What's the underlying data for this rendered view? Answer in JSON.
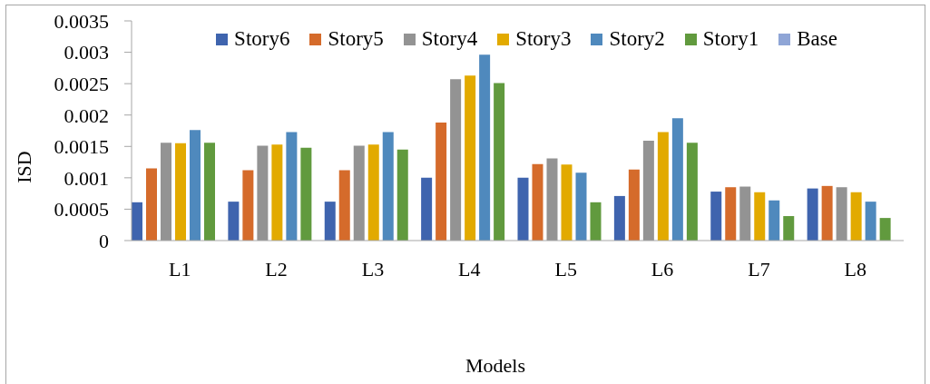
{
  "chart_data": {
    "type": "bar",
    "xlabel": "Models",
    "ylabel": "ISD",
    "legend": "top",
    "categories": [
      "L1",
      "L2",
      "L3",
      "L4",
      "L5",
      "L6",
      "L7",
      "L8"
    ],
    "series": [
      {
        "name": "Story6",
        "color": "#3f64ae",
        "values": [
          0.00061,
          0.00062,
          0.00062,
          0.001,
          0.001,
          0.00071,
          0.00078,
          0.00083
        ]
      },
      {
        "name": "Story5",
        "color": "#d56b2b",
        "values": [
          0.00115,
          0.00112,
          0.00112,
          0.00188,
          0.00122,
          0.00113,
          0.00085,
          0.00087
        ]
      },
      {
        "name": "Story4",
        "color": "#939393",
        "values": [
          0.00156,
          0.00151,
          0.00151,
          0.00257,
          0.00131,
          0.00159,
          0.00086,
          0.00085
        ]
      },
      {
        "name": "Story3",
        "color": "#e2aa00",
        "values": [
          0.00155,
          0.00153,
          0.00153,
          0.00263,
          0.00121,
          0.00173,
          0.00077,
          0.00077
        ]
      },
      {
        "name": "Story2",
        "color": "#4f89bd",
        "values": [
          0.00176,
          0.00173,
          0.00173,
          0.00296,
          0.00108,
          0.00195,
          0.00064,
          0.00062
        ]
      },
      {
        "name": "Story1",
        "color": "#619a3e",
        "values": [
          0.00156,
          0.00148,
          0.00145,
          0.00251,
          0.00061,
          0.00156,
          0.00039,
          0.00036
        ]
      },
      {
        "name": "Base",
        "color": "#8fa5d6",
        "values": [
          null,
          null,
          null,
          null,
          null,
          null,
          null,
          null
        ]
      }
    ],
    "ylim": [
      0,
      0.0035
    ],
    "yticks": [
      0,
      0.0005,
      0.001,
      0.0015,
      0.002,
      0.0025,
      0.003,
      0.0035
    ]
  }
}
